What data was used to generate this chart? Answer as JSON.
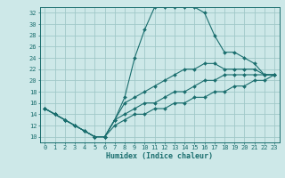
{
  "title": "",
  "xlabel": "Humidex (Indice chaleur)",
  "xlim": [
    -0.5,
    23.5
  ],
  "ylim": [
    9,
    33
  ],
  "xticks": [
    0,
    1,
    2,
    3,
    4,
    5,
    6,
    7,
    8,
    9,
    10,
    11,
    12,
    13,
    14,
    15,
    16,
    17,
    18,
    19,
    20,
    21,
    22,
    23
  ],
  "yticks": [
    10,
    12,
    14,
    16,
    18,
    20,
    22,
    24,
    26,
    28,
    30,
    32
  ],
  "bg_color": "#cde8e8",
  "grid_color": "#a0c8c8",
  "line_color": "#1a6e6e",
  "s0": [
    15,
    14,
    13,
    12,
    11,
    10,
    10,
    13,
    17,
    24,
    29,
    33,
    33,
    33,
    33,
    33,
    32,
    28,
    25,
    25,
    24,
    23,
    21,
    21
  ],
  "s1": [
    15,
    14,
    13,
    12,
    11,
    10,
    10,
    13,
    16,
    17,
    18,
    19,
    20,
    21,
    22,
    22,
    23,
    23,
    22,
    22,
    22,
    22,
    21,
    21
  ],
  "s2": [
    15,
    14,
    13,
    12,
    11,
    10,
    10,
    13,
    14,
    15,
    16,
    16,
    17,
    18,
    18,
    19,
    20,
    20,
    21,
    21,
    21,
    21,
    21,
    21
  ],
  "s3": [
    15,
    14,
    13,
    12,
    11,
    10,
    10,
    12,
    13,
    14,
    14,
    15,
    15,
    16,
    16,
    17,
    17,
    18,
    18,
    19,
    19,
    20,
    20,
    21
  ]
}
